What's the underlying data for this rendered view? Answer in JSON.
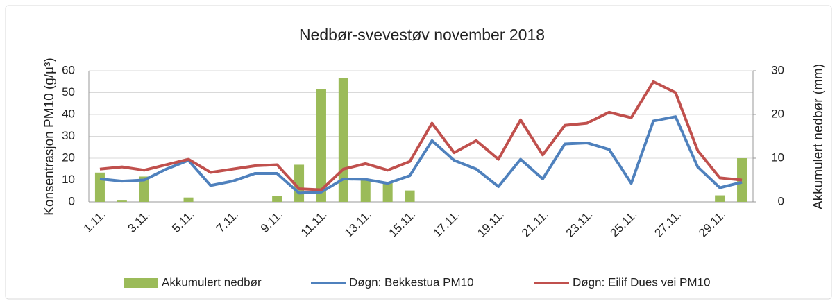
{
  "chart_data": {
    "type": "combo",
    "title": "Nedbør-svevestøv november 2018",
    "y_label": "Konsentrasjon PM10 (g/µ³)",
    "y2_label": "Akkumulert nedbør (mm)",
    "categories": [
      "1.11.",
      null,
      "3.11.",
      null,
      "5.11.",
      null,
      "7.11.",
      null,
      "9.11.",
      null,
      "11.11.",
      null,
      "13.11.",
      null,
      "15.11.",
      null,
      "17.11.",
      null,
      "19.11.",
      null,
      "21.11.",
      null,
      "23.11.",
      null,
      "25.11.",
      null,
      "27.11.",
      null,
      "29.11.",
      null
    ],
    "series": [
      {
        "name": "Akkumulert nedbør",
        "type": "bar",
        "axis": "y2",
        "color": "#9bbb59",
        "values": [
          6.7,
          0.3,
          5.8,
          0,
          1.0,
          0,
          0,
          0,
          1.4,
          8.5,
          25.8,
          28.3,
          5,
          4.6,
          2.6,
          0,
          0,
          0,
          0,
          0,
          0,
          0,
          0,
          0,
          0,
          0,
          0,
          0,
          1.5,
          10
        ]
      },
      {
        "name": "Døgn: Bekkestua PM10",
        "type": "line",
        "color": "#4f81bd",
        "values": [
          10.5,
          9.5,
          10,
          15,
          19,
          7.5,
          9.5,
          13,
          13,
          4,
          4.5,
          10.5,
          10.3,
          8.5,
          12,
          28,
          19,
          15,
          7,
          19.5,
          10.5,
          26.5,
          27,
          24,
          8.5,
          37,
          39,
          16,
          6.5,
          9
        ]
      },
      {
        "name": "Døgn: Eilif Dues vei PM10",
        "type": "line",
        "color": "#c0504d",
        "values": [
          15,
          16,
          14.5,
          17,
          19.5,
          13.5,
          15,
          16.5,
          17,
          6,
          5.5,
          15,
          17.5,
          14.5,
          18.5,
          36,
          22.5,
          28,
          19.5,
          37.5,
          21.5,
          35,
          36,
          41,
          38.5,
          55,
          50,
          23.5,
          11,
          10
        ]
      }
    ],
    "ylim": [
      0,
      60
    ],
    "yticks": [
      0,
      10,
      20,
      30,
      40,
      50,
      60
    ],
    "y2lim": [
      0,
      30
    ],
    "y2ticks": [
      0,
      10,
      20,
      30
    ],
    "grid": true,
    "legend": "bottom"
  }
}
